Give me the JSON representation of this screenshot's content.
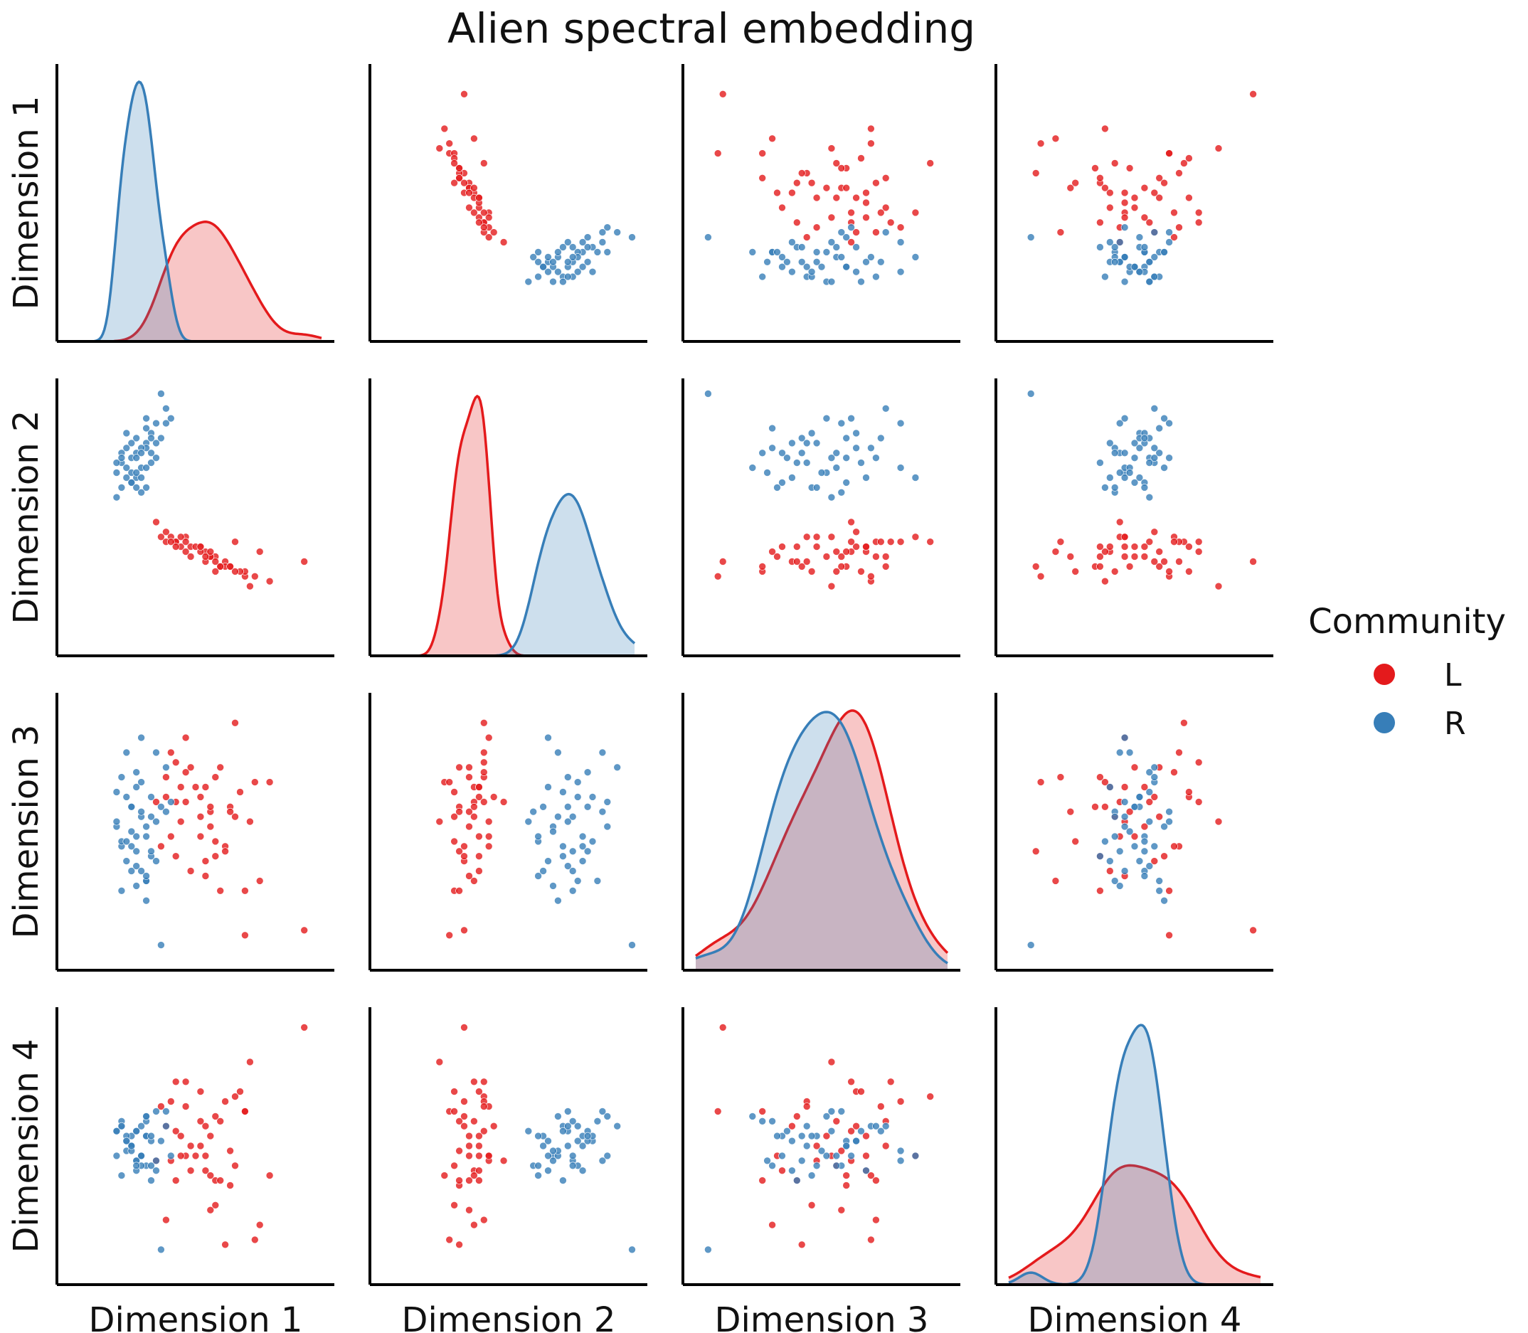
{
  "chart_data": {
    "type": "scatter",
    "title": "Alien spectral embedding",
    "variables": [
      "Dimension 1",
      "Dimension 2",
      "Dimension 3",
      "Dimension 4"
    ],
    "ranges": [
      [
        -2.55,
        2.55
      ],
      [
        -2.55,
        2.55
      ],
      [
        -2.55,
        2.55
      ],
      [
        -2.55,
        2.55
      ]
    ],
    "diagonal": "kde",
    "offdiagonal": "scatter",
    "axis_ticks": false,
    "grid": false,
    "legend": {
      "title": "Community",
      "position": "right",
      "entries": [
        {
          "label": "L",
          "color": "#e41a1c"
        },
        {
          "label": "R",
          "color": "#377eb8"
        }
      ]
    },
    "series": [
      {
        "name": "L",
        "color": "#e41a1c",
        "points": [
          [
            2.2,
            -0.9,
            -2.0,
            2.4
          ],
          [
            1.0,
            -1.2,
            -2.1,
            0.7
          ],
          [
            0.8,
            -0.5,
            2.2,
            1.0
          ],
          [
            1.5,
            -1.3,
            1.0,
            -0.6
          ],
          [
            0.7,
            -1.0,
            0.5,
            -0.8
          ],
          [
            0.4,
            -0.8,
            1.1,
            -0.7
          ],
          [
            0.5,
            -1.0,
            1.3,
            0.5
          ],
          [
            1.1,
            -1.4,
            0.2,
            1.7
          ],
          [
            0.6,
            -0.9,
            -0.3,
            0.9
          ],
          [
            0.2,
            -0.7,
            0.9,
            -0.5
          ],
          [
            1.3,
            -0.7,
            -1.0,
            -1.6
          ],
          [
            1.0,
            -1.1,
            -1.2,
            0.7
          ],
          [
            0.1,
            -0.6,
            0.7,
            1.1
          ],
          [
            -0.2,
            -0.4,
            1.9,
            -0.2
          ],
          [
            0.3,
            -0.8,
            0.4,
            -1.3
          ],
          [
            -0.4,
            -0.5,
            0.6,
            0.3
          ],
          [
            0.4,
            -1.1,
            -0.2,
            -1.2
          ],
          [
            -0.1,
            -0.8,
            1.3,
            0.0
          ],
          [
            -0.3,
            -0.6,
            0.9,
            0.2
          ],
          [
            0.6,
            -1.0,
            -0.4,
            -2.0
          ],
          [
            -0.5,
            -0.4,
            -0.1,
            -0.3
          ],
          [
            0.1,
            -0.7,
            0.3,
            0.5
          ],
          [
            -0.6,
            -0.5,
            1.1,
            -1.5
          ],
          [
            0.2,
            -0.9,
            -0.6,
            0.4
          ],
          [
            0.9,
            -1.1,
            0.8,
            1.1
          ],
          [
            -0.1,
            -0.6,
            -0.8,
            -0.5
          ],
          [
            0.3,
            -0.8,
            0.1,
            0.2
          ],
          [
            -0.4,
            -0.5,
            1.4,
            1.3
          ],
          [
            0.5,
            -1.0,
            -1.2,
            -0.7
          ],
          [
            -0.2,
            -0.7,
            0.6,
            1.3
          ],
          [
            0.8,
            -1.1,
            0.3,
            -0.4
          ],
          [
            -0.7,
            -0.4,
            -0.3,
            0.8
          ],
          [
            0.0,
            -0.6,
            0.9,
            -0.2
          ],
          [
            0.4,
            -0.9,
            -0.5,
            0.6
          ],
          [
            -0.3,
            -0.4,
            0.2,
            -0.2
          ],
          [
            1.2,
            -1.2,
            1.0,
            -1.9
          ],
          [
            -0.6,
            -0.3,
            0.7,
            0.4
          ],
          [
            0.2,
            -0.8,
            -0.9,
            -0.2
          ],
          [
            -0.5,
            -0.5,
            1.6,
            0.9
          ],
          [
            0.7,
            -1.0,
            0.4,
            -0.1
          ],
          [
            -0.8,
            -0.1,
            0.6,
            -0.3
          ],
          [
            0.1,
            -0.6,
            -0.1,
            0.0
          ],
          [
            -0.2,
            -0.5,
            1.2,
            0.8
          ],
          [
            0.3,
            -0.7,
            0.5,
            -0.6
          ],
          [
            -0.4,
            -0.6,
            -0.5,
            -0.7
          ]
        ]
      },
      {
        "name": "R",
        "color": "#377eb8",
        "points": [
          [
            -0.7,
            2.5,
            -2.3,
            -2.1
          ],
          [
            -1.0,
            1.5,
            -0.1,
            0.2
          ],
          [
            -1.3,
            1.2,
            0.5,
            0.0
          ],
          [
            -1.2,
            1.3,
            -0.4,
            -0.3
          ],
          [
            -1.6,
            0.9,
            0.1,
            -0.2
          ],
          [
            -1.5,
            1.1,
            -0.3,
            0.4
          ],
          [
            -1.4,
            0.8,
            -0.6,
            0.1
          ],
          [
            -1.2,
            1.6,
            1.2,
            0.3
          ],
          [
            -1.0,
            1.4,
            -1.0,
            -0.4
          ],
          [
            -1.1,
            1.0,
            0.3,
            -0.2
          ],
          [
            -0.9,
            1.7,
            0.7,
            0.1
          ],
          [
            -1.3,
            0.7,
            -0.8,
            0.2
          ],
          [
            -0.8,
            1.9,
            1.6,
            -0.3
          ],
          [
            -1.5,
            1.3,
            -1.2,
            0.5
          ],
          [
            -1.1,
            0.5,
            0.4,
            -0.4
          ],
          [
            -1.6,
            0.4,
            0.2,
            0.3
          ],
          [
            -0.9,
            1.1,
            -0.5,
            -0.7
          ],
          [
            -0.6,
            2.2,
            1.3,
            0.4
          ],
          [
            -1.2,
            0.8,
            0.9,
            -0.5
          ],
          [
            -1.0,
            1.8,
            -1.0,
            0.5
          ],
          [
            -1.4,
            1.0,
            1.6,
            -0.1
          ],
          [
            -0.8,
            1.2,
            0.2,
            0.7
          ],
          [
            -1.3,
            1.5,
            -0.3,
            0.0
          ],
          [
            -1.0,
            0.6,
            -0.9,
            0.2
          ],
          [
            -0.5,
            2.0,
            0.6,
            -0.2
          ],
          [
            -1.1,
            1.4,
            1.0,
            0.4
          ],
          [
            -1.5,
            0.6,
            -0.2,
            -0.6
          ],
          [
            -0.7,
            1.6,
            0.5,
            0.1
          ],
          [
            -1.2,
            1.2,
            -0.7,
            0.3
          ],
          [
            -1.3,
            0.9,
            0.0,
            -0.1
          ],
          [
            -1.0,
            1.0,
            -1.4,
            0.6
          ],
          [
            -0.9,
            1.3,
            0.3,
            -0.4
          ],
          [
            -1.4,
            1.7,
            -0.2,
            0.2
          ],
          [
            -1.1,
            0.8,
            1.9,
            -0.2
          ],
          [
            -0.8,
            1.5,
            -0.6,
            -0.5
          ],
          [
            -1.6,
            1.1,
            0.8,
            0.3
          ],
          [
            -1.2,
            0.9,
            -1.1,
            -0.3
          ],
          [
            -1.0,
            2.0,
            0.1,
            0.6
          ],
          [
            -1.3,
            0.7,
            0.5,
            0.0
          ],
          [
            -0.9,
            1.6,
            -0.4,
            0.2
          ],
          [
            -1.5,
            1.2,
            1.1,
            0.4
          ],
          [
            -1.1,
            1.3,
            -0.8,
            -0.2
          ],
          [
            -0.6,
            1.9,
            0.4,
            0.7
          ],
          [
            -1.2,
            0.6,
            -0.1,
            -0.4
          ],
          [
            -1.4,
            1.4,
            0.7,
            0.1
          ]
        ]
      }
    ]
  }
}
